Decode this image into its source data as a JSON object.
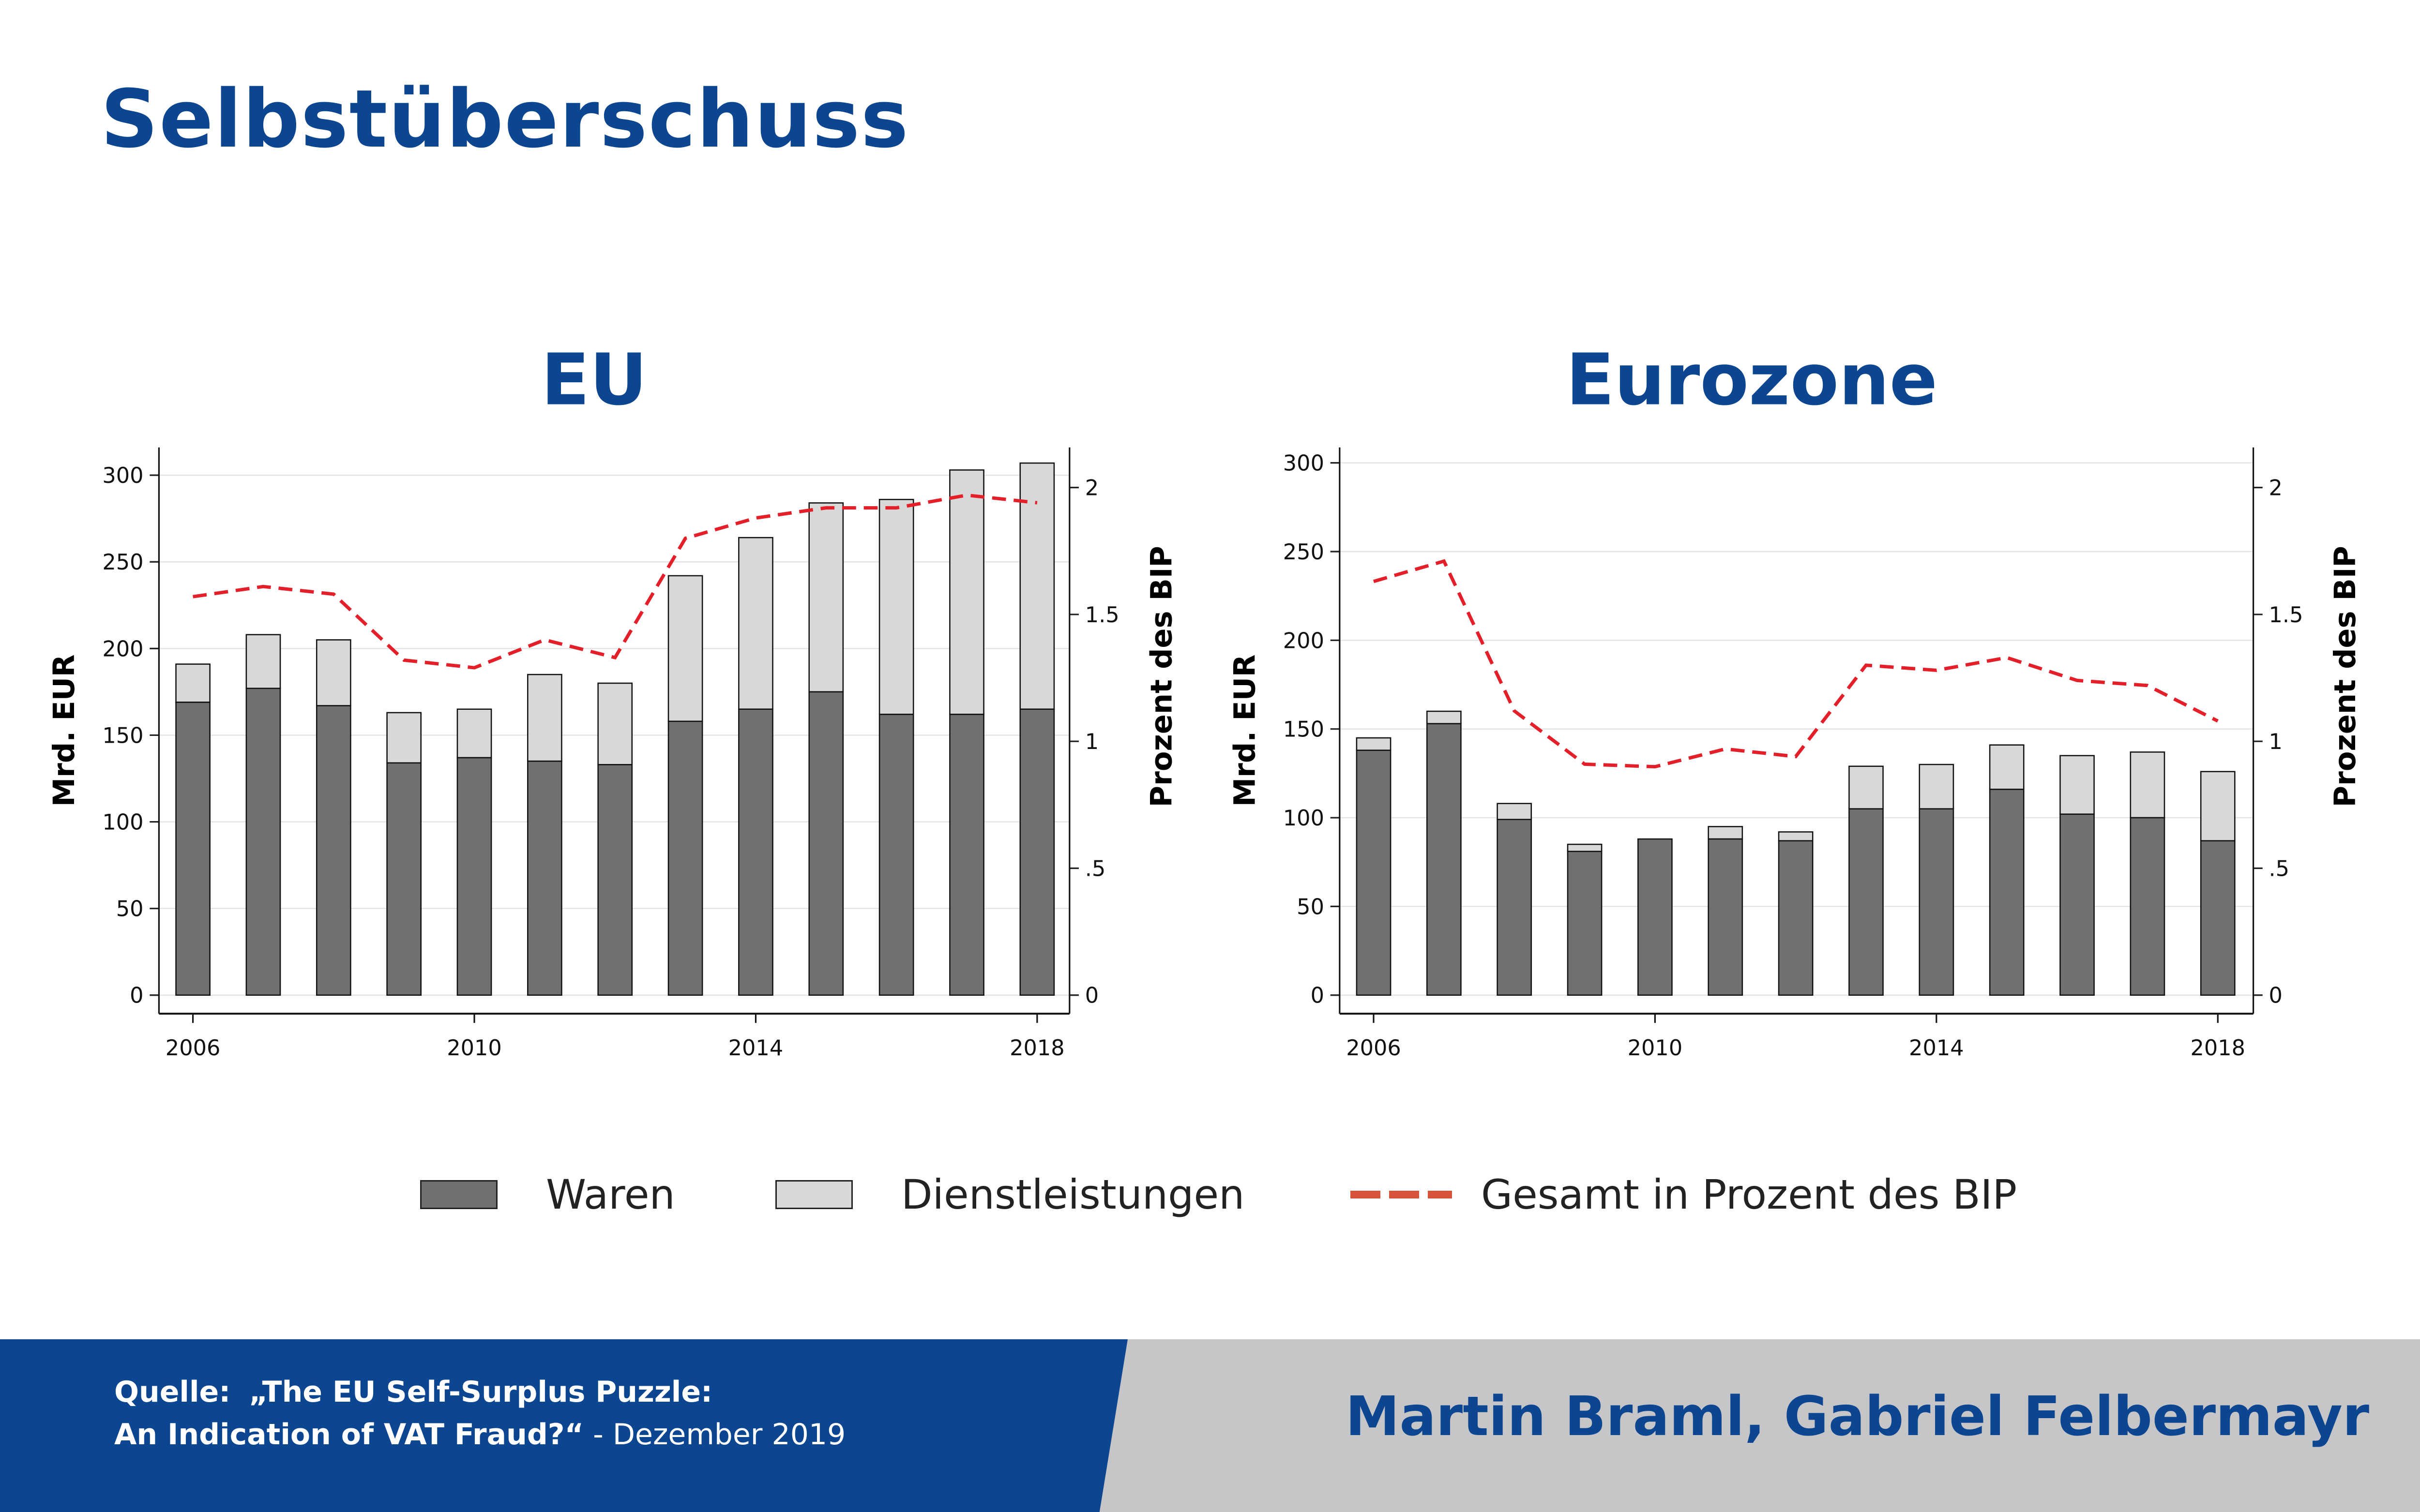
{
  "title": "Selbstüberschuss",
  "legend": {
    "waren": "Waren",
    "dienstleistungen": "Dienstleistungen",
    "gesamt": "Gesamt in Prozent des BIP"
  },
  "colors": {
    "waren": "#707070",
    "dienstleistungen": "#d8d8d8",
    "gesamt": "#e3202a",
    "brand": "#0d4690"
  },
  "footer": {
    "source_label": "Quelle:",
    "source_title_line1": "„The EU Self-Surplus Puzzle:",
    "source_title_line2": "An Indication of VAT Fraud?“",
    "source_date": " - Dezember 2019",
    "authors": "Martin Braml, Gabriel Felbermayr"
  },
  "chart_data": [
    {
      "type": "bar",
      "title": "EU",
      "ylabel": "Mrd. EUR",
      "y2label": "Prozent des BIP",
      "ylim": [
        0,
        315
      ],
      "y2lim": [
        0,
        2.1
      ],
      "yticks": [
        "0",
        "50",
        "100",
        "150",
        "200",
        "250",
        "300"
      ],
      "y2ticks": [
        "0",
        ".5",
        "1",
        "1.5",
        "2"
      ],
      "xticks": [
        "2006",
        "2010",
        "2014",
        "2018"
      ],
      "x": [
        2006,
        2007,
        2008,
        2009,
        2010,
        2011,
        2012,
        2013,
        2014,
        2015,
        2016,
        2017,
        2018
      ],
      "series": [
        {
          "name": "Waren",
          "stacked": true,
          "values": [
            169,
            177,
            167,
            134,
            137,
            135,
            133,
            158,
            165,
            175,
            162,
            162,
            165
          ]
        },
        {
          "name": "Dienstleistungen",
          "stacked": true,
          "values": [
            22,
            31,
            38,
            29,
            28,
            50,
            47,
            84,
            99,
            109,
            124,
            141,
            142
          ]
        },
        {
          "name": "Gesamt in Prozent des BIP",
          "axis": "right",
          "line": "dashed",
          "values": [
            1.57,
            1.61,
            1.58,
            1.32,
            1.29,
            1.4,
            1.33,
            1.8,
            1.88,
            1.92,
            1.92,
            1.97,
            1.94
          ]
        }
      ]
    },
    {
      "type": "bar",
      "title": "Eurozone",
      "ylabel": "Mrd. EUR",
      "y2label": "Prozent des BIP",
      "ylim": [
        0,
        315
      ],
      "y2lim": [
        0,
        2.1
      ],
      "yticks": [
        "0",
        "50",
        "100",
        "150",
        "200",
        "250",
        "300"
      ],
      "y2ticks": [
        "0",
        ".5",
        "1",
        "1.5",
        "2"
      ],
      "xticks": [
        "2006",
        "2010",
        "2014",
        "2018"
      ],
      "x": [
        2006,
        2007,
        2008,
        2009,
        2010,
        2011,
        2012,
        2013,
        2014,
        2015,
        2016,
        2017,
        2018
      ],
      "series": [
        {
          "name": "Waren",
          "stacked": true,
          "values": [
            138,
            153,
            99,
            81,
            88,
            88,
            87,
            105,
            105,
            116,
            102,
            100,
            87
          ]
        },
        {
          "name": "Dienstleistungen",
          "stacked": true,
          "values": [
            7,
            7,
            9,
            4,
            0,
            7,
            5,
            24,
            25,
            25,
            33,
            37,
            39
          ]
        },
        {
          "name": "Gesamt in Prozent des BIP",
          "axis": "right",
          "line": "dashed",
          "values": [
            1.63,
            1.71,
            1.12,
            0.91,
            0.9,
            0.97,
            0.94,
            1.3,
            1.28,
            1.33,
            1.24,
            1.22,
            1.08
          ]
        }
      ]
    }
  ]
}
